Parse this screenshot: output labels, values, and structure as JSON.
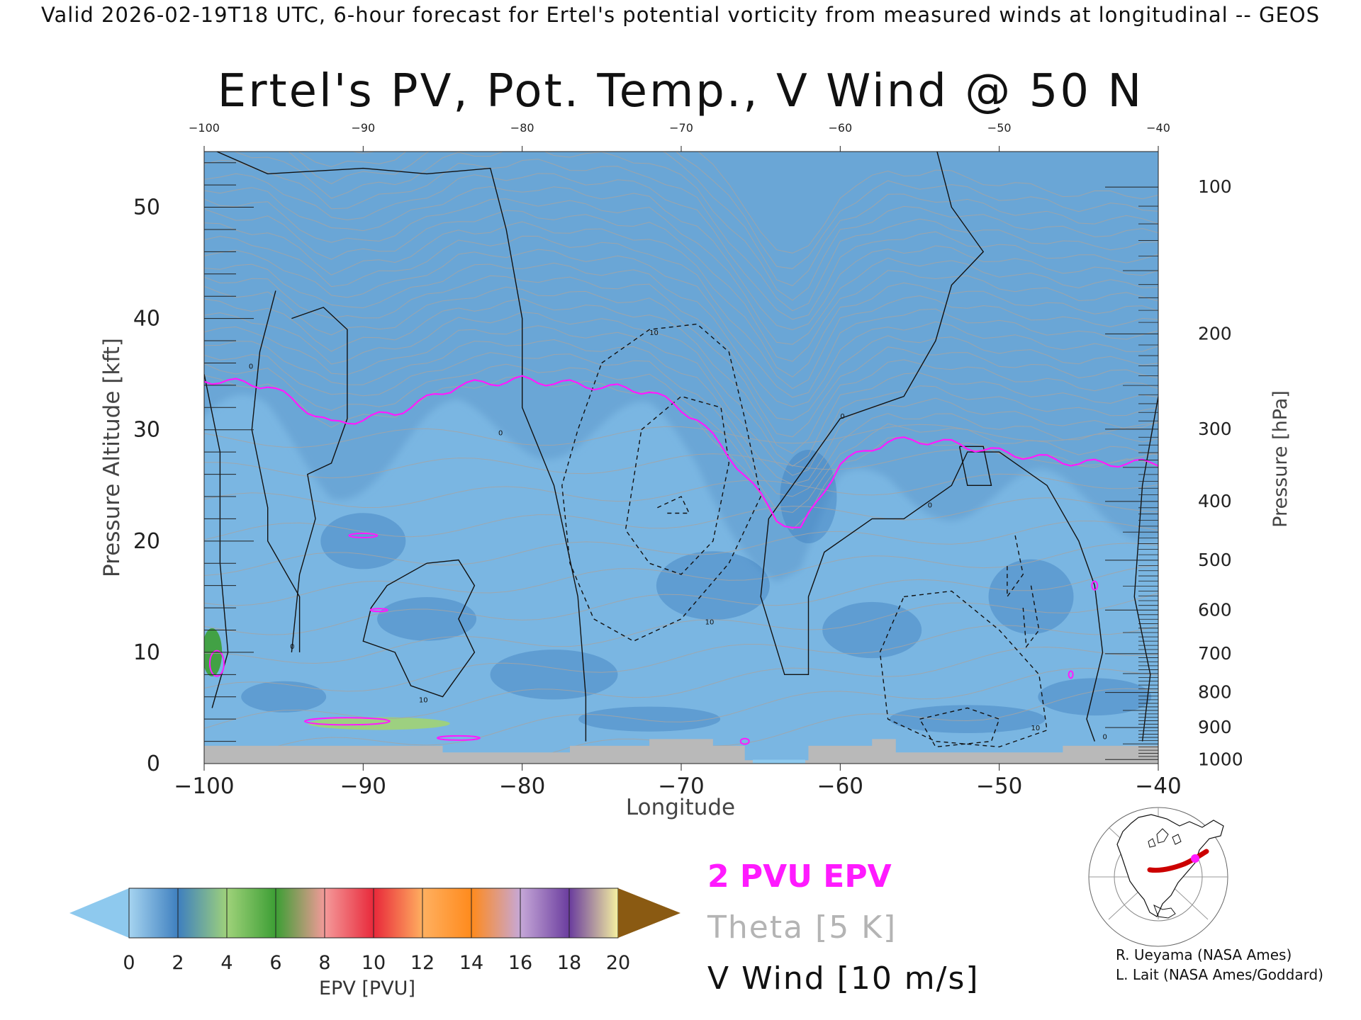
{
  "header": {
    "text": "Valid 2026-02-19T18 UTC, 6-hour forecast for Ertel's potential vorticity from measured winds at longitudinal -- GEOS"
  },
  "chart_data": {
    "type": "heatmap",
    "title": "Ertel's PV, Pot. Temp., V Wind @ 50 N",
    "xlabel": "Longitude",
    "ylabel": "Pressure Altitude [kft]",
    "y2label": "Pressure [hPa]",
    "xlim": [
      -100,
      -40
    ],
    "ylim": [
      0,
      55
    ],
    "x_ticks": [
      -100,
      -90,
      -80,
      -70,
      -60,
      -50,
      -40
    ],
    "x_ticks_top": [
      -100,
      -90,
      -80,
      -70,
      -60,
      -50,
      -40
    ],
    "y_ticks": [
      0,
      10,
      20,
      30,
      40,
      50
    ],
    "pressure_ticks": [
      100,
      200,
      300,
      400,
      500,
      600,
      700,
      800,
      900,
      1000
    ],
    "colorbar": {
      "label": "EPV [PVU]",
      "ticks": [
        0,
        2,
        4,
        6,
        8,
        10,
        12,
        14,
        16,
        18,
        20
      ],
      "colors": [
        "#8ec9ee",
        "#3e7fbf",
        "#9fd27a",
        "#3c9e34",
        "#f49a9a",
        "#e8283a",
        "#ffb060",
        "#ff8a1c",
        "#c6a8d8",
        "#6a3c9e",
        "#f6f2a0",
        "#8a5a12"
      ]
    },
    "field_bands": [
      {
        "pv": 0,
        "color": "#8ec9ee"
      },
      {
        "pv": 1,
        "color": "#6aa6d6"
      },
      {
        "pv": 2,
        "color": "#3e7fbf"
      },
      {
        "pv": 3,
        "color": "#9fd27a"
      },
      {
        "pv": 5,
        "color": "#3c9e34"
      },
      {
        "pv": 7,
        "color": "#f49a9a"
      },
      {
        "pv": 9,
        "color": "#e8283a"
      },
      {
        "pv": 11,
        "color": "#ffb060"
      },
      {
        "pv": 13,
        "color": "#ff8a1c"
      },
      {
        "pv": 15,
        "color": "#c6a8d8"
      },
      {
        "pv": 17,
        "color": "#6a3c9e"
      },
      {
        "pv": 19,
        "color": "#f6f2a0"
      }
    ],
    "tropopause_2pvu_kft": [
      {
        "lon": -100,
        "kft": 34.5
      },
      {
        "lon": -96,
        "kft": 34
      },
      {
        "lon": -92,
        "kft": 30.5
      },
      {
        "lon": -88,
        "kft": 31.5
      },
      {
        "lon": -84,
        "kft": 34
      },
      {
        "lon": -80,
        "kft": 34.5
      },
      {
        "lon": -76,
        "kft": 34
      },
      {
        "lon": -72,
        "kft": 33.5
      },
      {
        "lon": -69,
        "kft": 31
      },
      {
        "lon": -66,
        "kft": 26
      },
      {
        "lon": -64,
        "kft": 22
      },
      {
        "lon": -62.5,
        "kft": 21
      },
      {
        "lon": -60,
        "kft": 27
      },
      {
        "lon": -57,
        "kft": 29
      },
      {
        "lon": -54,
        "kft": 29
      },
      {
        "lon": -50,
        "kft": 28
      },
      {
        "lon": -45,
        "kft": 27
      },
      {
        "lon": -40,
        "kft": 27
      }
    ],
    "vwind_contour_labels": [
      "0",
      "10",
      "-10"
    ]
  },
  "legend": {
    "pv_label": "2 PVU EPV",
    "pv_color": "#ff1aff",
    "theta_label": "Theta [5 K]",
    "theta_color": "#b4b4b4",
    "vwind_label": "V Wind [10 m/s]",
    "vwind_color": "#111111"
  },
  "credits": {
    "line1": "R. Ueyama (NASA Ames)",
    "line2": "L. Lait (NASA Ames/Goddard)"
  },
  "inset_map": {
    "icon": "polar-projection-map-icon",
    "track_color": "#cc0000",
    "marker_color": "#ff1aff"
  }
}
